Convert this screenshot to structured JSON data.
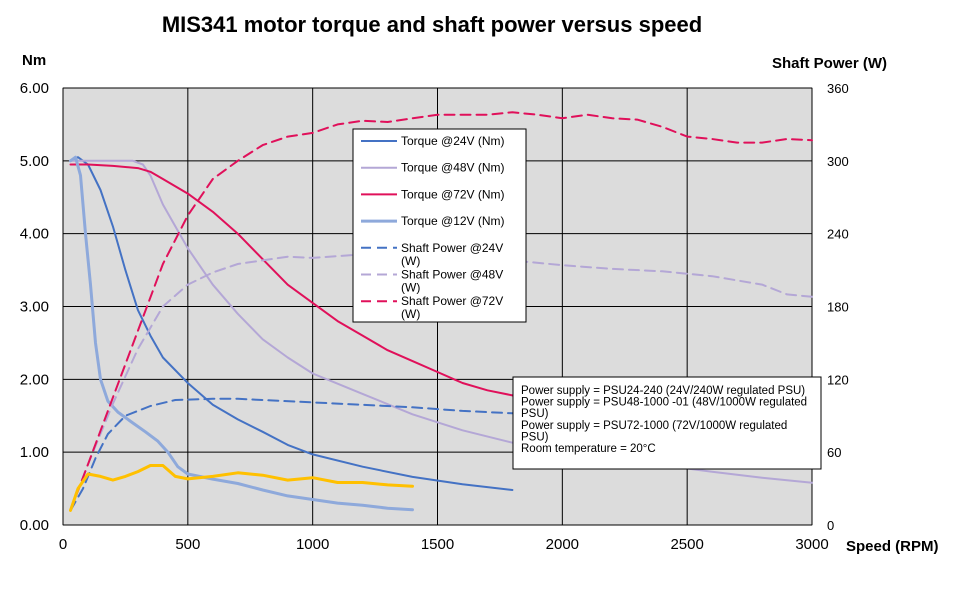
{
  "chart_data": {
    "type": "line",
    "title": "MIS341 motor torque and shaft power versus speed",
    "xlabel": "Speed (RPM)",
    "ylabel": "Nm",
    "y2label": "Shaft Power (W)",
    "xlim": [
      0,
      3000
    ],
    "ylim": [
      0,
      6
    ],
    "y2lim": [
      0,
      360
    ],
    "x_ticks": [
      0,
      500,
      1000,
      1500,
      2000,
      2500,
      3000
    ],
    "y_ticks": [
      "0.00",
      "1.00",
      "2.00",
      "3.00",
      "4.00",
      "5.00",
      "6.00"
    ],
    "y2_ticks": [
      0,
      60,
      120,
      180,
      240,
      300,
      360
    ],
    "grid": true,
    "legend_position": "center",
    "series": [
      {
        "name": "Torque @24V (Nm)",
        "axis": "left",
        "color": "#4472C4",
        "dash": "solid",
        "width": 2,
        "points": [
          [
            30,
            5.0
          ],
          [
            60,
            5.05
          ],
          [
            100,
            4.95
          ],
          [
            150,
            4.6
          ],
          [
            200,
            4.1
          ],
          [
            250,
            3.5
          ],
          [
            300,
            2.95
          ],
          [
            350,
            2.6
          ],
          [
            400,
            2.3
          ],
          [
            500,
            1.95
          ],
          [
            600,
            1.65
          ],
          [
            700,
            1.45
          ],
          [
            800,
            1.28
          ],
          [
            900,
            1.1
          ],
          [
            1000,
            0.97
          ],
          [
            1200,
            0.8
          ],
          [
            1400,
            0.66
          ],
          [
            1600,
            0.56
          ],
          [
            1800,
            0.48
          ]
        ]
      },
      {
        "name": "Torque @48V (Nm)",
        "axis": "left",
        "color": "#B4A7D6",
        "dash": "solid",
        "width": 2,
        "points": [
          [
            30,
            5.0
          ],
          [
            100,
            5.0
          ],
          [
            200,
            5.0
          ],
          [
            280,
            5.0
          ],
          [
            320,
            4.95
          ],
          [
            350,
            4.8
          ],
          [
            400,
            4.4
          ],
          [
            500,
            3.8
          ],
          [
            600,
            3.3
          ],
          [
            700,
            2.9
          ],
          [
            800,
            2.55
          ],
          [
            900,
            2.3
          ],
          [
            1000,
            2.08
          ],
          [
            1200,
            1.8
          ],
          [
            1400,
            1.52
          ],
          [
            1600,
            1.3
          ],
          [
            1800,
            1.13
          ],
          [
            2000,
            1.0
          ],
          [
            2200,
            0.9
          ],
          [
            2400,
            0.82
          ],
          [
            2600,
            0.73
          ],
          [
            2800,
            0.65
          ],
          [
            3000,
            0.58
          ]
        ]
      },
      {
        "name": "Torque @72V (Nm)",
        "axis": "left",
        "color": "#E0105A",
        "dash": "solid",
        "width": 2,
        "points": [
          [
            30,
            4.95
          ],
          [
            100,
            4.95
          ],
          [
            200,
            4.93
          ],
          [
            300,
            4.9
          ],
          [
            350,
            4.85
          ],
          [
            400,
            4.75
          ],
          [
            500,
            4.55
          ],
          [
            600,
            4.3
          ],
          [
            700,
            4.0
          ],
          [
            800,
            3.65
          ],
          [
            900,
            3.3
          ],
          [
            1000,
            3.05
          ],
          [
            1100,
            2.8
          ],
          [
            1200,
            2.6
          ],
          [
            1300,
            2.4
          ],
          [
            1400,
            2.25
          ],
          [
            1500,
            2.1
          ],
          [
            1600,
            1.95
          ],
          [
            1700,
            1.85
          ],
          [
            1800,
            1.78
          ],
          [
            2000,
            1.55
          ],
          [
            2200,
            1.4
          ],
          [
            2400,
            1.3
          ],
          [
            2600,
            1.2
          ],
          [
            2800,
            1.1
          ],
          [
            3000,
            1.0
          ]
        ]
      },
      {
        "name": "Torque @12V (Nm)",
        "axis": "left",
        "color": "#8EA9DB",
        "dash": "solid",
        "width": 3,
        "points": [
          [
            30,
            5.0
          ],
          [
            50,
            5.05
          ],
          [
            70,
            4.8
          ],
          [
            90,
            4.0
          ],
          [
            110,
            3.3
          ],
          [
            130,
            2.5
          ],
          [
            150,
            2.0
          ],
          [
            180,
            1.7
          ],
          [
            220,
            1.55
          ],
          [
            280,
            1.4
          ],
          [
            330,
            1.28
          ],
          [
            380,
            1.15
          ],
          [
            420,
            1.0
          ],
          [
            460,
            0.8
          ],
          [
            500,
            0.7
          ],
          [
            600,
            0.63
          ],
          [
            700,
            0.57
          ],
          [
            800,
            0.48
          ],
          [
            900,
            0.4
          ],
          [
            1000,
            0.35
          ],
          [
            1100,
            0.3
          ],
          [
            1200,
            0.27
          ],
          [
            1300,
            0.23
          ],
          [
            1400,
            0.21
          ]
        ]
      },
      {
        "name": "Shaft Power @24V (W)",
        "axis": "right",
        "color": "#4472C4",
        "dash": "dashed",
        "width": 2,
        "points": [
          [
            30,
            12
          ],
          [
            80,
            30
          ],
          [
            130,
            55
          ],
          [
            180,
            75
          ],
          [
            250,
            90
          ],
          [
            350,
            98
          ],
          [
            450,
            103
          ],
          [
            600,
            104
          ],
          [
            700,
            104
          ],
          [
            800,
            103
          ],
          [
            1000,
            101
          ],
          [
            1200,
            99
          ],
          [
            1400,
            97
          ],
          [
            1600,
            94
          ],
          [
            1800,
            92
          ]
        ]
      },
      {
        "name": "Shaft Power @48V (W)",
        "axis": "right",
        "color": "#B4A7D6",
        "dash": "dashed",
        "width": 2,
        "points": [
          [
            30,
            12
          ],
          [
            100,
            50
          ],
          [
            200,
            100
          ],
          [
            300,
            145
          ],
          [
            400,
            180
          ],
          [
            500,
            198
          ],
          [
            600,
            208
          ],
          [
            700,
            215
          ],
          [
            800,
            218
          ],
          [
            900,
            221
          ],
          [
            1000,
            220
          ],
          [
            1200,
            223
          ],
          [
            1400,
            222
          ],
          [
            1600,
            219
          ],
          [
            1800,
            218
          ],
          [
            2000,
            214
          ],
          [
            2200,
            211
          ],
          [
            2400,
            209
          ],
          [
            2600,
            205
          ],
          [
            2800,
            198
          ],
          [
            2900,
            190
          ],
          [
            3000,
            188
          ]
        ]
      },
      {
        "name": "Shaft Power @72V (W)",
        "axis": "right",
        "color": "#E0105A",
        "dash": "dashed",
        "width": 2,
        "points": [
          [
            30,
            12
          ],
          [
            100,
            50
          ],
          [
            200,
            105
          ],
          [
            300,
            160
          ],
          [
            400,
            215
          ],
          [
            500,
            255
          ],
          [
            600,
            285
          ],
          [
            700,
            300
          ],
          [
            800,
            313
          ],
          [
            900,
            320
          ],
          [
            1000,
            323
          ],
          [
            1100,
            330
          ],
          [
            1200,
            333
          ],
          [
            1300,
            332
          ],
          [
            1400,
            335
          ],
          [
            1500,
            338
          ],
          [
            1600,
            338
          ],
          [
            1700,
            338
          ],
          [
            1800,
            340
          ],
          [
            1900,
            338
          ],
          [
            2000,
            335
          ],
          [
            2100,
            338
          ],
          [
            2200,
            335
          ],
          [
            2300,
            334
          ],
          [
            2400,
            328
          ],
          [
            2500,
            320
          ],
          [
            2600,
            318
          ],
          [
            2700,
            315
          ],
          [
            2800,
            315
          ],
          [
            2900,
            318
          ],
          [
            3000,
            317
          ]
        ]
      },
      {
        "name": "",
        "axis": "right",
        "color": "#FFC000",
        "dash": "solid",
        "width": 3,
        "points": [
          [
            30,
            12
          ],
          [
            60,
            30
          ],
          [
            100,
            42
          ],
          [
            150,
            40
          ],
          [
            200,
            37
          ],
          [
            250,
            40
          ],
          [
            300,
            44
          ],
          [
            350,
            49
          ],
          [
            400,
            49
          ],
          [
            450,
            40
          ],
          [
            500,
            38
          ],
          [
            600,
            40
          ],
          [
            700,
            43
          ],
          [
            800,
            41
          ],
          [
            900,
            37
          ],
          [
            1000,
            39
          ],
          [
            1100,
            35
          ],
          [
            1200,
            35
          ],
          [
            1300,
            33
          ],
          [
            1400,
            32
          ]
        ]
      }
    ],
    "annotation": [
      "Power supply = PSU24-240 (24V/240W regulated PSU)",
      "Power supply = PSU48-1000 -01 (48V/1000W regulated PSU)",
      "Power supply = PSU72-1000 (72V/1000W regulated PSU)",
      "Room temperature = 20°C"
    ]
  }
}
